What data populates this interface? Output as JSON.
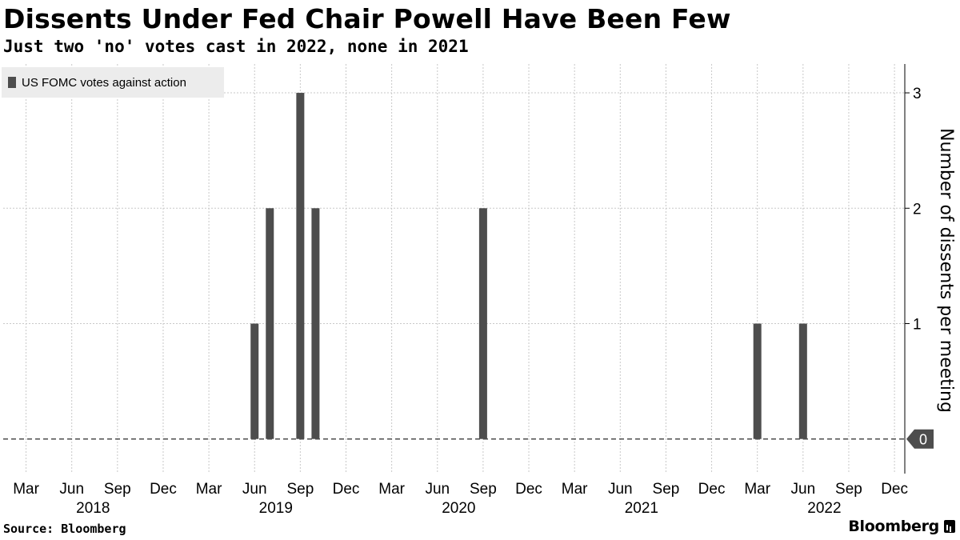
{
  "title": "Dissents Under Fed Chair Powell Have Been Few",
  "subtitle": "Just two 'no' votes cast in 2022, none in 2021",
  "source": "Source: Bloomberg",
  "brand": "Bloomberg",
  "colors": {
    "bar": "#4d4d4d",
    "grid": "#c8c8c8",
    "legend_bg": "#ececec",
    "zero_marker": "#4d4d4d"
  },
  "chart_data": {
    "type": "bar",
    "series": [
      {
        "name": "US FOMC votes against action",
        "x": [
          "2018-03",
          "2018-05",
          "2018-06",
          "2018-08",
          "2018-09",
          "2018-11",
          "2018-12",
          "2019-01",
          "2019-03",
          "2019-04",
          "2019-06",
          "2019-07",
          "2019-09",
          "2019-10",
          "2019-12",
          "2020-01",
          "2020-03",
          "2020-03",
          "2020-04",
          "2020-06",
          "2020-07",
          "2020-09",
          "2020-11",
          "2020-12",
          "2021-01",
          "2021-03",
          "2021-04",
          "2021-06",
          "2021-07",
          "2021-09",
          "2021-11",
          "2021-12",
          "2022-01",
          "2022-03",
          "2022-05",
          "2022-06",
          "2022-07",
          "2022-09",
          "2022-11",
          "2022-12"
        ],
        "values": [
          0,
          0,
          0,
          0,
          0,
          0,
          0,
          0,
          0,
          0,
          1,
          2,
          3,
          2,
          0,
          0,
          0,
          0,
          0,
          0,
          0,
          2,
          0,
          0,
          0,
          0,
          0,
          0,
          0,
          0,
          0,
          0,
          0,
          1,
          0,
          1,
          0,
          0,
          0,
          0
        ]
      }
    ],
    "x_tick_labels": [
      "Mar",
      "Jun",
      "Sep",
      "Dec",
      "Mar",
      "Jun",
      "Sep",
      "Dec",
      "Mar",
      "Jun",
      "Sep",
      "Dec",
      "Mar",
      "Jun",
      "Sep",
      "Dec",
      "Mar",
      "Jun",
      "Sep",
      "Dec"
    ],
    "x_tick_months": [
      "2018-03",
      "2018-06",
      "2018-09",
      "2018-12",
      "2019-03",
      "2019-06",
      "2019-09",
      "2019-12",
      "2020-03",
      "2020-06",
      "2020-09",
      "2020-12",
      "2021-03",
      "2021-06",
      "2021-09",
      "2021-12",
      "2022-03",
      "2022-06",
      "2022-09",
      "2022-12"
    ],
    "year_labels": [
      "2018",
      "2019",
      "2020",
      "2021",
      "2022"
    ],
    "y_ticks": [
      "1",
      "2",
      "3"
    ],
    "y_tick_values": [
      1,
      2,
      3
    ],
    "y_zero_label": "0",
    "ylabel": "Number of dissents per meeting",
    "ylim": [
      -0.3,
      3.25
    ],
    "x_range": [
      "2018-02",
      "2022-12"
    ],
    "grid": true,
    "legend_position": "top-left"
  }
}
